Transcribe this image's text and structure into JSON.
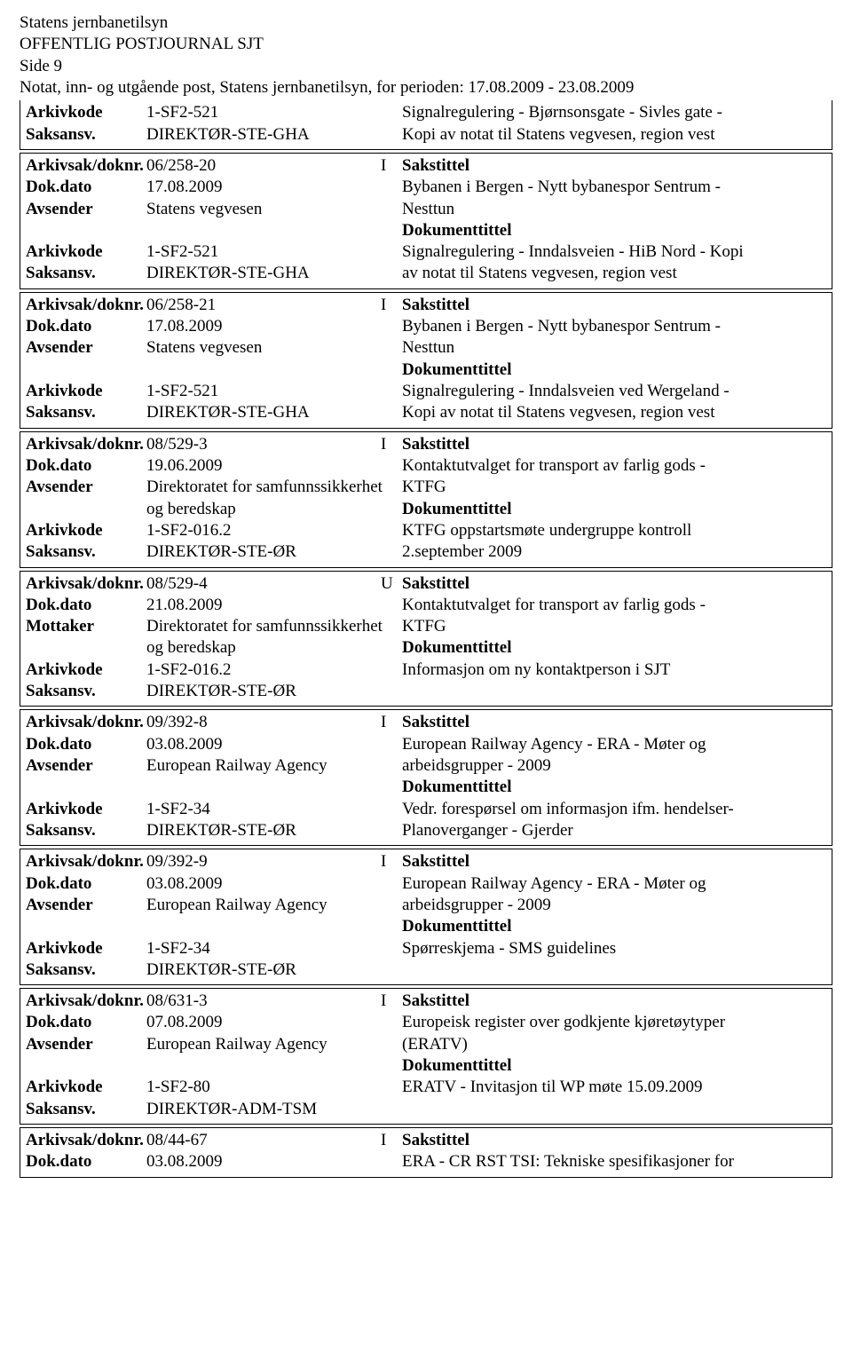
{
  "header": {
    "org": "Statens jernbanetilsyn",
    "title": "OFFENTLIG POSTJOURNAL SJT",
    "page": "Side 9",
    "period": "Notat, inn- og utgående post, Statens jernbanetilsyn, for perioden: 17.08.2009 - 23.08.2009"
  },
  "labels": {
    "arkivsak": "Arkivsak/doknr.",
    "dokdato": "Dok.dato",
    "avsender": "Avsender",
    "mottaker": "Mottaker",
    "arkivkode": "Arkivkode",
    "saksansv": "Saksansv.",
    "sakstittel": "Sakstittel",
    "dokumenttittel": "Dokumenttittel"
  },
  "top": {
    "arkivkode": "1-SF2-521",
    "saksansv": "DIREKTØR-STE-GHA",
    "right1": "Signalregulering - Bjørnsonsgate - Sivles gate -",
    "right2": "Kopi av notat til Statens vegvesen, region vest"
  },
  "records": [
    {
      "arkivsak": "06/258-20",
      "io": "I",
      "dokdato": "17.08.2009",
      "party_label": "Avsender",
      "party": "Statens vegvesen",
      "arkivkode": "1-SF2-521",
      "saksansv": "DIREKTØR-STE-GHA",
      "sak1": "Bybanen i Bergen - Nytt bybanespor Sentrum -",
      "sak2": "Nesttun",
      "dok1": "Signalregulering - Inndalsveien - HiB Nord - Kopi",
      "dok2": "av notat til Statens vegvesen, region vest"
    },
    {
      "arkivsak": "06/258-21",
      "io": "I",
      "dokdato": "17.08.2009",
      "party_label": "Avsender",
      "party": "Statens vegvesen",
      "arkivkode": "1-SF2-521",
      "saksansv": "DIREKTØR-STE-GHA",
      "sak1": "Bybanen i Bergen - Nytt bybanespor Sentrum -",
      "sak2": "Nesttun",
      "dok1": "Signalregulering - Inndalsveien ved Wergeland -",
      "dok2": "Kopi av notat til Statens vegvesen, region vest"
    },
    {
      "arkivsak": "08/529-3",
      "io": "I",
      "dokdato": "19.06.2009",
      "party_label": "Avsender",
      "party": "Direktoratet for samfunnssikkerhet",
      "party_line2": "og beredskap",
      "arkivkode": "1-SF2-016.2",
      "saksansv": "DIREKTØR-STE-ØR",
      "sak1": "Kontaktutvalget for transport av farlig gods -",
      "sak2": "KTFG",
      "dok1": "KTFG oppstartsmøte undergruppe kontroll",
      "dok2": "2.september 2009"
    },
    {
      "arkivsak": "08/529-4",
      "io": "U",
      "dokdato": "21.08.2009",
      "party_label": "Mottaker",
      "party": "Direktoratet for samfunnssikkerhet",
      "party_line2": "og beredskap",
      "arkivkode": "1-SF2-016.2",
      "saksansv": "DIREKTØR-STE-ØR",
      "sak1": "Kontaktutvalget for transport av farlig gods -",
      "sak2": "KTFG",
      "dok1": "Informasjon om ny kontaktperson i SJT",
      "dok2": ""
    },
    {
      "arkivsak": "09/392-8",
      "io": "I",
      "dokdato": "03.08.2009",
      "party_label": "Avsender",
      "party": "European Railway Agency",
      "arkivkode": "1-SF2-34",
      "saksansv": "DIREKTØR-STE-ØR",
      "sak1": "European Railway Agency - ERA - Møter og",
      "sak2": "arbeidsgrupper - 2009",
      "dok1": "Vedr. forespørsel om informasjon ifm. hendelser-",
      "dok2": "Planoverganger - Gjerder"
    },
    {
      "arkivsak": "09/392-9",
      "io": "I",
      "dokdato": "03.08.2009",
      "party_label": "Avsender",
      "party": "European Railway Agency",
      "arkivkode": "1-SF2-34",
      "saksansv": "DIREKTØR-STE-ØR",
      "sak1": "European Railway Agency - ERA - Møter og",
      "sak2": "arbeidsgrupper - 2009",
      "dok1": "Spørreskjema - SMS guidelines",
      "dok2": ""
    },
    {
      "arkivsak": "08/631-3",
      "io": "I",
      "dokdato": "07.08.2009",
      "party_label": "Avsender",
      "party": "European Railway Agency",
      "arkivkode": "1-SF2-80",
      "saksansv": "DIREKTØR-ADM-TSM",
      "sak1": "Europeisk register over godkjente kjøretøytyper",
      "sak2": "(ERATV)",
      "dok1": "ERATV - Invitasjon til WP møte 15.09.2009",
      "dok2": ""
    },
    {
      "arkivsak": "08/44-67",
      "io": "I",
      "dokdato": "03.08.2009",
      "sak1": "ERA - CR RST TSI: Tekniske spesifikasjoner for",
      "partial": true
    }
  ]
}
